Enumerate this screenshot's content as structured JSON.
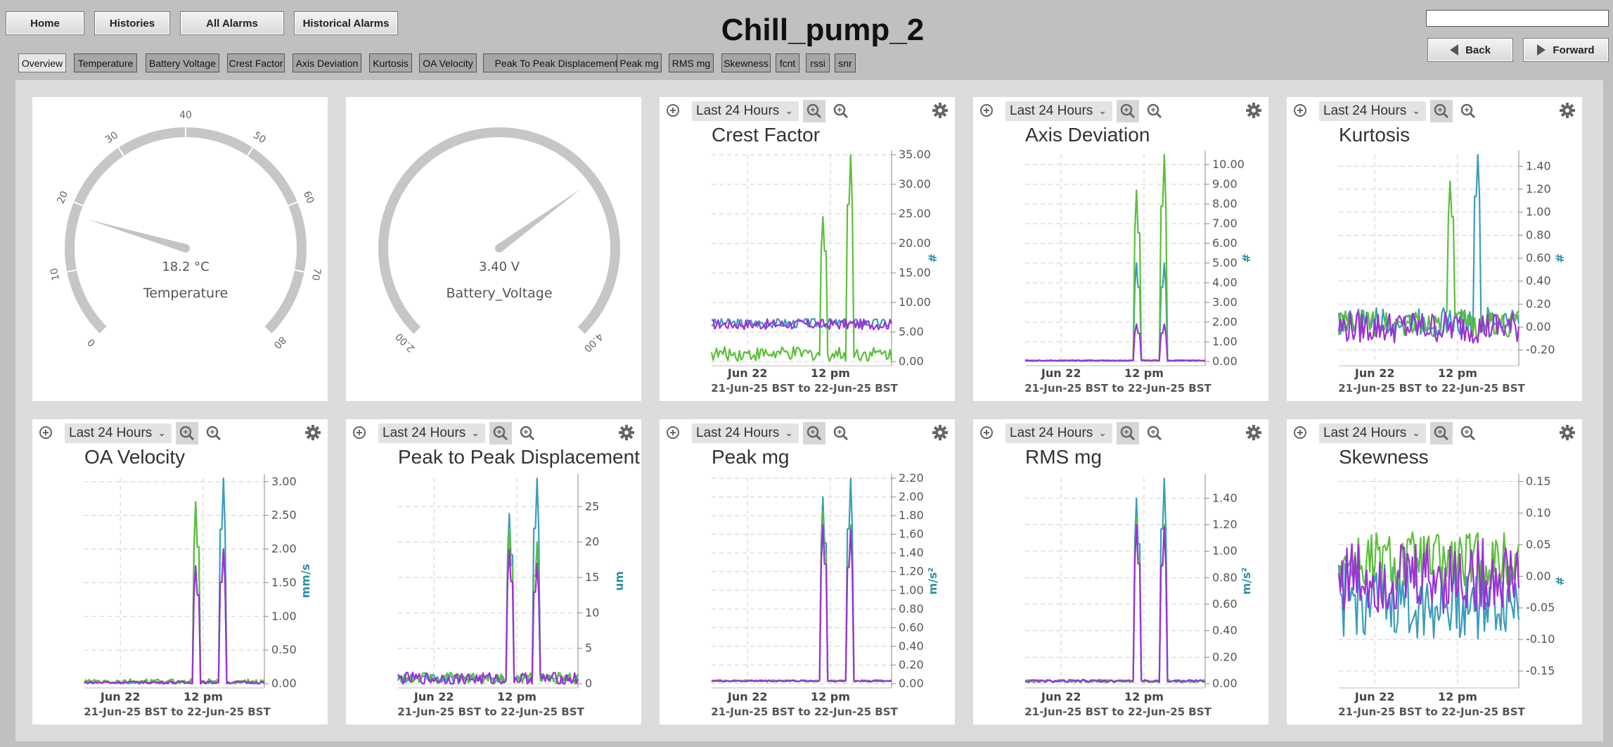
{
  "header": {
    "title": "Chill_pump_2",
    "buttons": [
      "Home",
      "Histories",
      "All Alarms",
      "Historical Alarms"
    ],
    "search_value": "",
    "back_label": "Back",
    "forward_label": "Forward"
  },
  "tabs": [
    "Overview",
    "Temperature",
    "Battery Voltage",
    "Crest Factor",
    "Axis Deviation",
    "Kurtosis",
    "OA Velocity",
    "Peak To Peak Displacement",
    "Peak mg",
    "RMS mg",
    "Skewness",
    "fcnt",
    "rssi",
    "snr"
  ],
  "active_tab": "Overview",
  "colors": {
    "teal": "#3a9dbb",
    "green": "#5cbf3a",
    "purple": "#9b30d9",
    "gauge": "#c6c6c6",
    "needle": "#c4c4c4",
    "accent_unit": "#2a8fa8"
  },
  "gauges": [
    {
      "label": "Temperature",
      "value_text": "18.2 °C",
      "value": 18.2,
      "min": 0,
      "max": 80,
      "ticks": [
        "0",
        "10",
        "20",
        "30",
        "40",
        "50",
        "60",
        "70",
        "80"
      ],
      "show_ticks": true
    },
    {
      "label": "Battery_Voltage",
      "value_text": "3.40 V",
      "value": 3.4,
      "min": 2.0,
      "max": 4.0,
      "ticks": [
        "2.00",
        "4.00"
      ],
      "show_ticks": false
    }
  ],
  "common": {
    "range_select": "Last 24 Hours",
    "x_tick_day": "Jun 22",
    "x_tick_noon": "12 pm",
    "range_text": "21-Jun-25 BST to 22-Jun-25 BST"
  },
  "chart_data": [
    {
      "type": "line",
      "title": "Crest Factor",
      "ylabel": "#",
      "yticks": [
        "0.00",
        "5.00",
        "10.00",
        "15.00",
        "20.00",
        "25.00",
        "30.00",
        "35.00"
      ],
      "ylim": [
        0,
        35
      ],
      "series": [
        {
          "color": "teal",
          "base": 6.5,
          "noise": 0.8,
          "spikes": []
        },
        {
          "color": "green",
          "base": 1.3,
          "noise": 1.2,
          "spikes": [
            [
              0.62,
              24.5
            ],
            [
              0.77,
              35
            ]
          ]
        },
        {
          "color": "purple",
          "base": 6.3,
          "noise": 0.9,
          "spikes": []
        }
      ]
    },
    {
      "type": "line",
      "title": "Axis Deviation",
      "ylabel": "#",
      "yticks": [
        "0.00",
        "1.00",
        "2.00",
        "3.00",
        "4.00",
        "5.00",
        "6.00",
        "7.00",
        "8.00",
        "9.00",
        "10.00"
      ],
      "ylim": [
        0,
        10.5
      ],
      "series": [
        {
          "color": "teal",
          "base": 0.05,
          "noise": 0.03,
          "spikes": [
            [
              0.62,
              5.0
            ],
            [
              0.77,
              5.0
            ]
          ]
        },
        {
          "color": "green",
          "base": 0.05,
          "noise": 0.03,
          "spikes": [
            [
              0.62,
              8.7
            ],
            [
              0.77,
              10.5
            ]
          ]
        },
        {
          "color": "purple",
          "base": 0.05,
          "noise": 0.03,
          "spikes": [
            [
              0.62,
              1.9
            ],
            [
              0.77,
              1.9
            ]
          ]
        }
      ]
    },
    {
      "type": "line",
      "title": "Kurtosis",
      "ylabel": "#",
      "yticks": [
        "-0.20",
        "0.00",
        "0.20",
        "0.40",
        "0.60",
        "0.80",
        "1.00",
        "1.20",
        "1.40"
      ],
      "ylim": [
        -0.3,
        1.5
      ],
      "series": [
        {
          "color": "teal",
          "base": 0.05,
          "noise": 0.12,
          "spikes": [
            [
              0.77,
              1.5
            ]
          ]
        },
        {
          "color": "green",
          "base": 0.03,
          "noise": 0.12,
          "spikes": [
            [
              0.62,
              1.27
            ]
          ]
        },
        {
          "color": "purple",
          "base": 0.0,
          "noise": 0.14,
          "spikes": []
        }
      ]
    },
    {
      "type": "line",
      "title": "OA Velocity",
      "ylabel": "mm/s",
      "yticks": [
        "0.00",
        "0.50",
        "1.00",
        "1.50",
        "2.00",
        "2.50",
        "3.00"
      ],
      "ylim": [
        0,
        3.05
      ],
      "series": [
        {
          "color": "teal",
          "base": 0.02,
          "noise": 0.02,
          "spikes": [
            [
              0.62,
              2.7
            ],
            [
              0.77,
              3.05
            ]
          ]
        },
        {
          "color": "green",
          "base": 0.03,
          "noise": 0.04,
          "spikes": [
            [
              0.62,
              2.7
            ],
            [
              0.77,
              2.0
            ]
          ]
        },
        {
          "color": "purple",
          "base": 0.02,
          "noise": 0.02,
          "spikes": [
            [
              0.62,
              1.75
            ],
            [
              0.77,
              2.0
            ]
          ]
        }
      ]
    },
    {
      "type": "line",
      "title": "Peak to Peak Displacement",
      "ylabel": "um",
      "yticks": [
        "0",
        "5",
        "10",
        "15",
        "20",
        "25"
      ],
      "ylim": [
        0,
        29
      ],
      "series": [
        {
          "color": "teal",
          "base": 0.7,
          "noise": 0.6,
          "spikes": [
            [
              0.62,
              24
            ],
            [
              0.77,
              29
            ]
          ]
        },
        {
          "color": "green",
          "base": 0.8,
          "noise": 0.8,
          "spikes": [
            [
              0.62,
              22
            ],
            [
              0.77,
              20
            ]
          ]
        },
        {
          "color": "purple",
          "base": 0.7,
          "noise": 0.9,
          "spikes": [
            [
              0.62,
              19
            ],
            [
              0.77,
              17
            ]
          ]
        }
      ]
    },
    {
      "type": "line",
      "title": "Peak mg",
      "ylabel": "m/s²",
      "yticks": [
        "0.00",
        "0.20",
        "0.40",
        "0.60",
        "0.80",
        "1.00",
        "1.20",
        "1.40",
        "1.60",
        "1.80",
        "2.00",
        "2.20"
      ],
      "ylim": [
        0,
        2.2
      ],
      "series": [
        {
          "color": "teal",
          "base": 0.03,
          "noise": 0.01,
          "spikes": [
            [
              0.62,
              2.0
            ],
            [
              0.77,
              2.2
            ]
          ]
        },
        {
          "color": "green",
          "base": 0.03,
          "noise": 0.01,
          "spikes": [
            [
              0.62,
              1.85
            ],
            [
              0.77,
              1.7
            ]
          ]
        },
        {
          "color": "purple",
          "base": 0.03,
          "noise": 0.01,
          "spikes": [
            [
              0.62,
              1.7
            ],
            [
              0.77,
              1.65
            ]
          ]
        }
      ]
    },
    {
      "type": "line",
      "title": "RMS mg",
      "ylabel": "m/s²",
      "yticks": [
        "0.00",
        "0.20",
        "0.40",
        "0.60",
        "0.80",
        "1.00",
        "1.20",
        "1.40"
      ],
      "ylim": [
        0,
        1.55
      ],
      "series": [
        {
          "color": "teal",
          "base": 0.02,
          "noise": 0.01,
          "spikes": [
            [
              0.62,
              1.4
            ],
            [
              0.77,
              1.55
            ]
          ]
        },
        {
          "color": "green",
          "base": 0.02,
          "noise": 0.01,
          "spikes": [
            [
              0.62,
              1.25
            ],
            [
              0.77,
              1.2
            ]
          ]
        },
        {
          "color": "purple",
          "base": 0.02,
          "noise": 0.01,
          "spikes": [
            [
              0.62,
              1.2
            ],
            [
              0.77,
              1.18
            ]
          ]
        }
      ]
    },
    {
      "type": "line",
      "title": "Skewness",
      "ylabel": "#",
      "yticks": [
        "-0.15",
        "-0.10",
        "-0.05",
        "0.00",
        "0.05",
        "0.10",
        "0.15"
      ],
      "ylim": [
        -0.17,
        0.155
      ],
      "series": [
        {
          "color": "teal",
          "base": -0.04,
          "noise": 0.06,
          "spikes": []
        },
        {
          "color": "green",
          "base": 0.02,
          "noise": 0.05,
          "spikes": []
        },
        {
          "color": "purple",
          "base": 0.0,
          "noise": 0.06,
          "spikes": []
        }
      ]
    }
  ]
}
